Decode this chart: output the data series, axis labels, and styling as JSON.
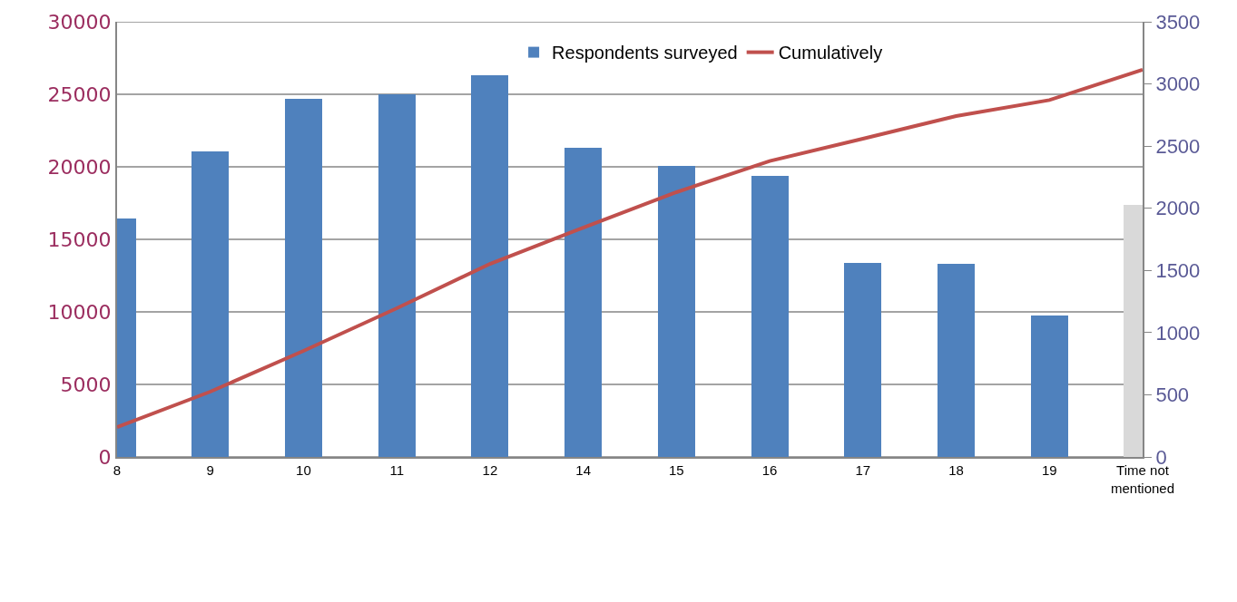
{
  "chart_data": {
    "type": "bar",
    "categories": [
      "8",
      "9",
      "10",
      "11",
      "12",
      "14",
      "15",
      "16",
      "17",
      "18",
      "19",
      "Time not\nmentioned"
    ],
    "series": [
      {
        "name": "Respondents surveyed",
        "axis": "y2",
        "color": "#4f81bd",
        "colors": [
          "#4f81bd",
          "#4f81bd",
          "#4f81bd",
          "#4f81bd",
          "#4f81bd",
          "#4f81bd",
          "#4f81bd",
          "#4f81bd",
          "#4f81bd",
          "#4f81bd",
          "#4f81bd",
          "#d9d9d9"
        ],
        "values": [
          1920,
          2460,
          2880,
          2920,
          3070,
          2490,
          2340,
          2260,
          1560,
          1555,
          1140,
          2030
        ]
      },
      {
        "name": "Cumulatively",
        "type": "line",
        "color": "#c0504d",
        "marker": "none",
        "values": [
          2060,
          4500,
          7310,
          10250,
          13310,
          15810,
          18250,
          20400,
          21940,
          23500,
          24600,
          26690
        ]
      }
    ],
    "ylim": [
      0,
      30000
    ],
    "yticks": [
      0,
      5000,
      10000,
      15000,
      20000,
      25000,
      30000
    ],
    "y2lim": [
      0,
      3500
    ],
    "y2ticks": [
      0,
      500,
      1000,
      1500,
      2000,
      2500,
      3000,
      3500
    ],
    "grid": "y",
    "legend": "top"
  }
}
